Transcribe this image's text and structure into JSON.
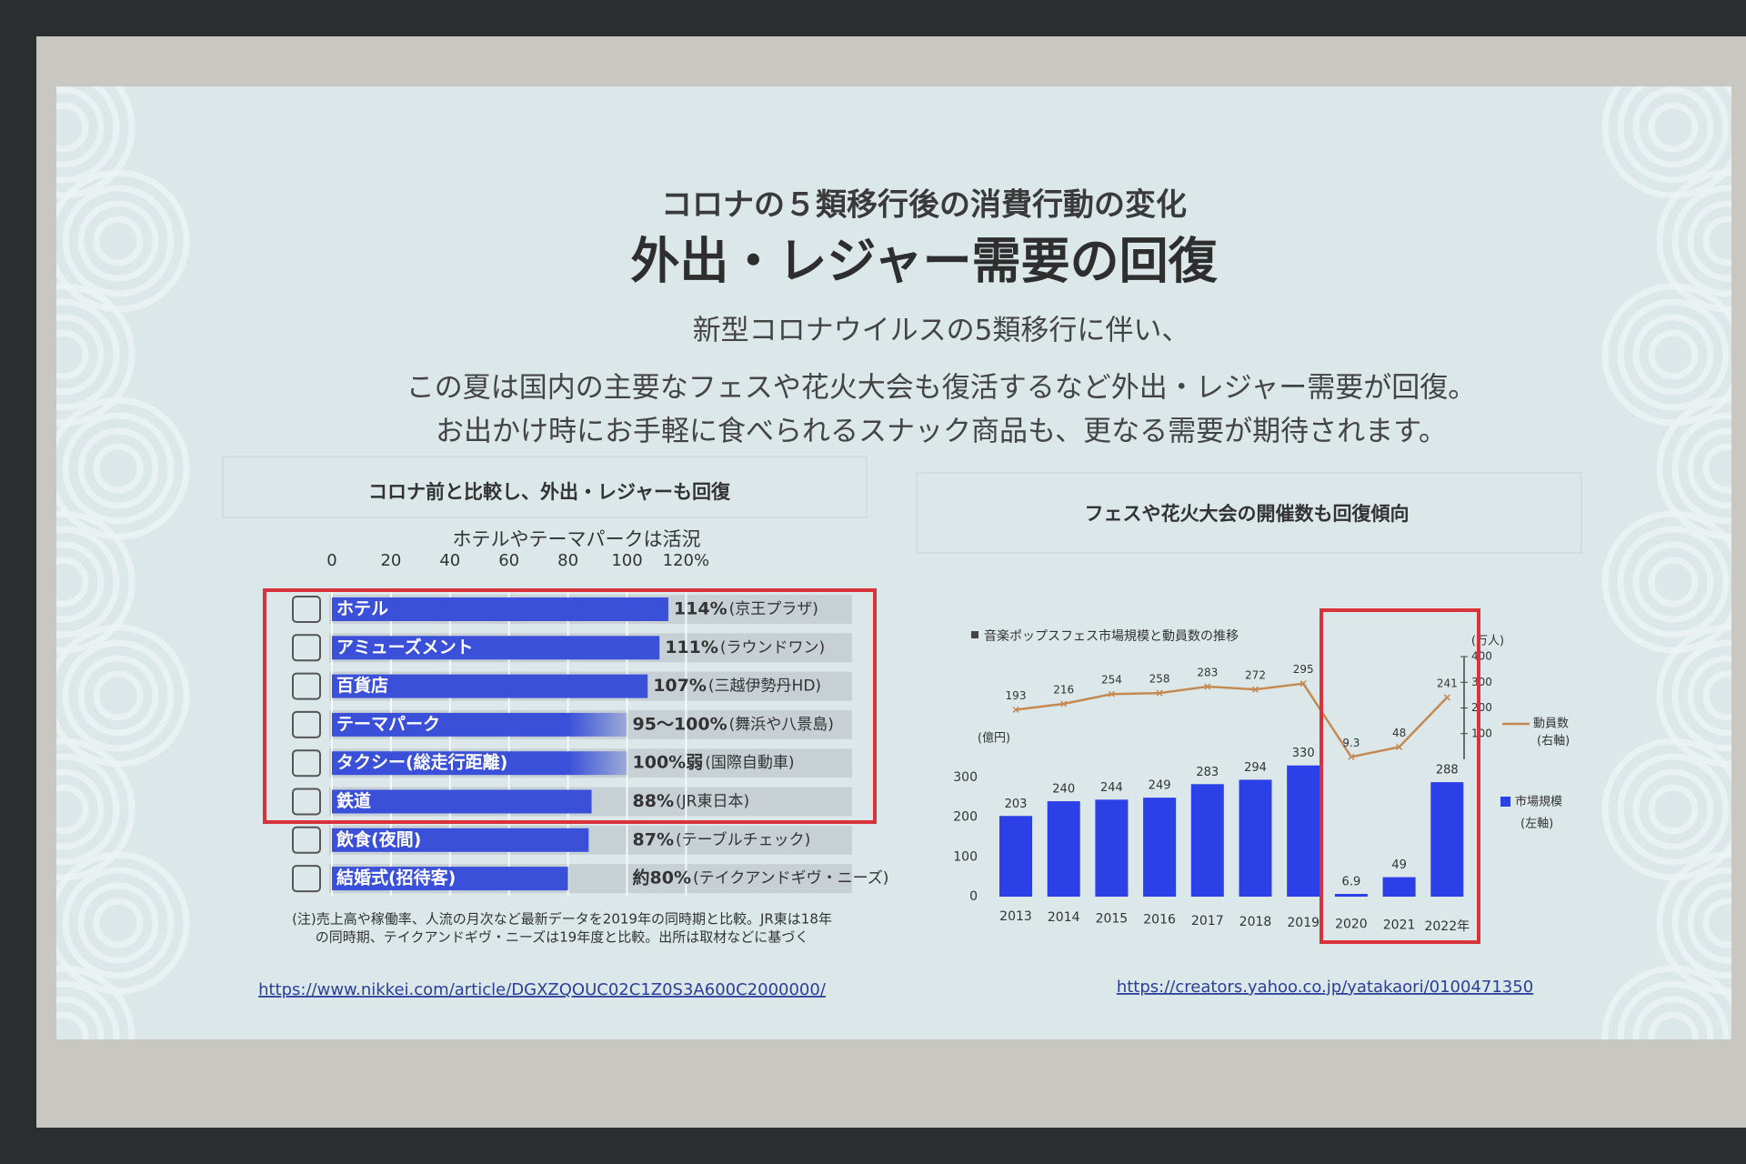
{
  "slide": {
    "title": [
      "コロナの５類移行後の消費行動の変化",
      "外出・レジャー需要の回復"
    ],
    "body": [
      "新型コロナウイルスの5類移行に伴い、",
      "この夏は国内の主要なフェスや花火大会も復活するなど外出・レジャー需要が回復。",
      "お出かけ時にお手軽に食べられるスナック商品も、更なる需要が期待されます。"
    ],
    "panels": [
      "コロナ前と比較し、外出・レジャーも回復",
      "フェスや花火大会の開催数も回復傾向"
    ],
    "links": [
      "https://www.nikkei.com/article/DGXZQOUC02C1Z0S3A600C2000000/",
      "https://creators.yahoo.co.jp/yatakaori/0100471350"
    ]
  },
  "chart_data": [
    {
      "type": "bar",
      "orientation": "horizontal",
      "title": "ホテルやテーマパークは活況",
      "categories": [
        "ホテル",
        "アミューズメント",
        "百貨店",
        "テーマパーク",
        "タクシー(総走行距離)",
        "鉄道",
        "飲食(夜間)",
        "結婚式(招待客)"
      ],
      "values": [
        114,
        111,
        107,
        100,
        100,
        88,
        87,
        80
      ],
      "value_labels": [
        "114%",
        "111%",
        "107%",
        "95～100%",
        "100%弱",
        "88%",
        "87%",
        "約80%"
      ],
      "sources": [
        "(京王プラザ)",
        "(ラウンドワン)",
        "(三越伊勢丹HD)",
        "(舞浜や八景島)",
        "(国際自動車)",
        "(JR東日本)",
        "(テーブルチェック)",
        "(テイクアンドギヴ・ニーズ)"
      ],
      "color": "#3a50d8",
      "xlim": [
        0,
        120
      ],
      "xticks": [
        0,
        20,
        40,
        60,
        80,
        100,
        {
          "value": 120,
          "label": "120%"
        }
      ],
      "grid": true,
      "note": [
        "(注)売上高や稼働率、人流の月次など最新データを2019年の同時期と比較。JR東は18年",
        "の同時期、テイクアンドギヴ・ニーズは19年度と比較。出所は取材などに基づく"
      ]
    },
    {
      "type": "combo",
      "title": "音楽ポップスフェス市場規模と動員数の推移",
      "categories": [
        "2013",
        "2014",
        "2015",
        "2016",
        "2017",
        "2018",
        "2019",
        "2020",
        "2021",
        "2022年"
      ],
      "series": [
        {
          "name": "市場規模",
          "axis_note": "(左軸)",
          "type": "bar",
          "axis": "y",
          "color": "#2b40e6",
          "values": [
            203,
            240,
            244,
            249,
            283,
            294,
            330,
            6.9,
            49,
            288
          ]
        },
        {
          "name": "動員数",
          "axis_note": "(右軸)",
          "type": "line",
          "axis": "y2",
          "color": "#c48a52",
          "values": [
            193,
            216,
            254,
            258,
            283,
            272,
            295,
            9.3,
            48,
            241
          ]
        }
      ],
      "ylabel": "(億円)",
      "ylim": [
        0,
        350
      ],
      "yticks": [
        0,
        100,
        200,
        300
      ],
      "y2label": "(万人)",
      "y2lim": [
        0,
        400
      ],
      "y2ticks": [
        100,
        200,
        300,
        400
      ]
    }
  ]
}
